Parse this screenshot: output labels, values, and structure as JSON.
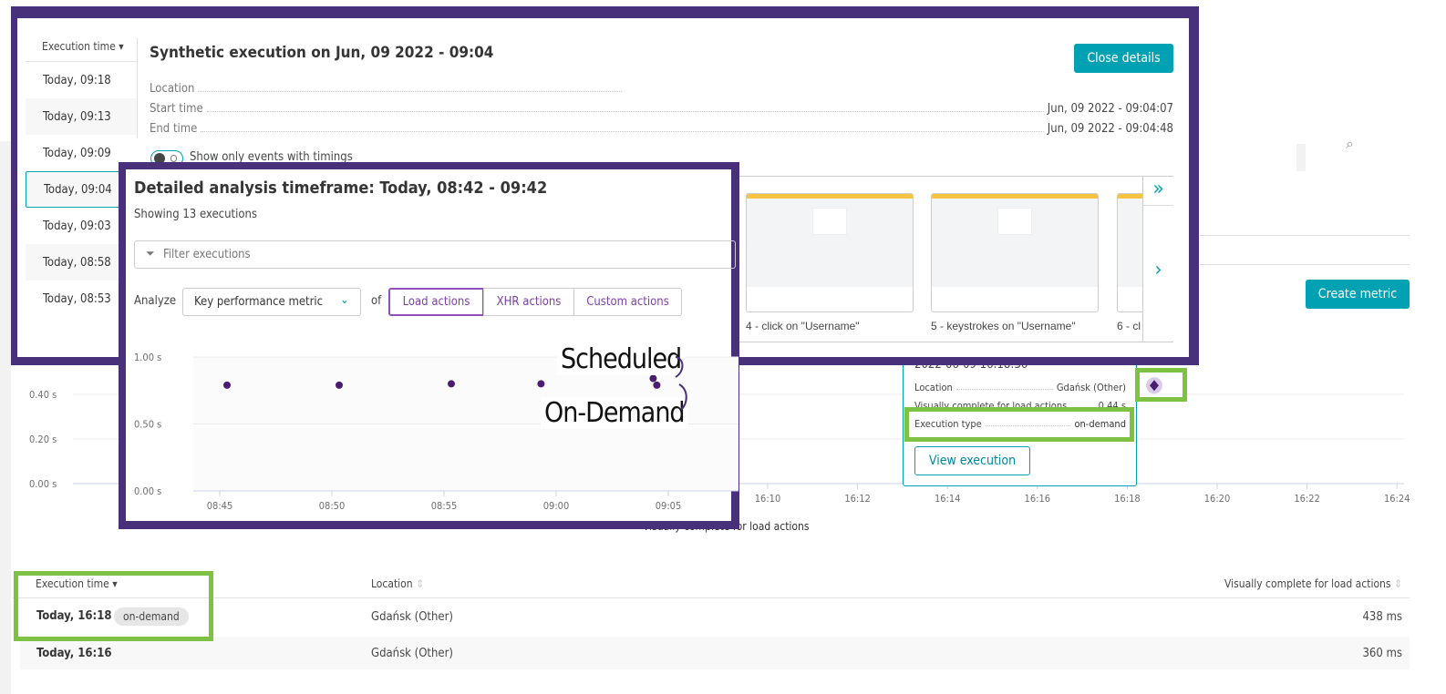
{
  "colors": {
    "accent": "#00a1b2",
    "highlight": "#48307a",
    "callout": "#7dc242",
    "point": "#4b1d6e"
  },
  "background": {
    "create_metric": "Create metric",
    "chart": {
      "type": "scatter",
      "yticks": [
        "0.40 s",
        "0.20 s",
        "0.00 s"
      ],
      "xticks": [
        "16:10",
        "16:12",
        "16:14",
        "16:16",
        "16:18",
        "16:20",
        "16:22",
        "16:24"
      ],
      "xlabel": "Visually complete for load actions",
      "points": [
        {
          "time": "16:18:36",
          "value_s": 0.44
        }
      ]
    },
    "tooltip": {
      "timestamp": "2022-06-09 16:18:36",
      "rows": [
        {
          "label": "Location",
          "value": "Gdańsk (Other)"
        },
        {
          "label": "Visually complete for load actions",
          "value": "0.44 s"
        },
        {
          "label": "Execution type",
          "value": "on-demand"
        }
      ],
      "button": "View execution"
    },
    "table": {
      "headers": [
        "Execution time",
        "Location",
        "Visually complete for load actions"
      ],
      "rows": [
        {
          "time": "Today, 16:18",
          "badge": "on-demand",
          "location": "Gdańsk (Other)",
          "value": "438 ms"
        },
        {
          "time": "Today, 16:16",
          "location": "Gdańsk (Other)",
          "value": "360 ms"
        }
      ]
    }
  },
  "details": {
    "list_header": "Execution time",
    "list": [
      "Today, 09:18",
      "Today, 09:13",
      "Today, 09:09",
      "Today, 09:04",
      "Today, 09:03",
      "Today, 08:58",
      "Today, 08:53"
    ],
    "selected_index": 3,
    "title": "Synthetic execution on Jun, 09 2022 - 09:04",
    "close": "Close details",
    "fields": [
      {
        "label": "Location",
        "value": ""
      },
      {
        "label": "Start time",
        "value": "Jun, 09 2022 - 09:04:07"
      },
      {
        "label": "End time",
        "value": "Jun, 09 2022 - 09:04:48"
      }
    ],
    "toggle_label": "Show only events with timings",
    "toggle_on": true,
    "screenshots": [
      "4 - click on \"Username\"",
      "5 - keystrokes on \"Username\"",
      "6 - cl"
    ]
  },
  "analysis": {
    "title": "Detailed analysis timeframe: Today, 08:42 - 09:42",
    "showing": "Showing 13 executions",
    "filter_placeholder": "Filter executions",
    "analyze_label": "Analyze",
    "metric": "Key performance metric",
    "of_label": "of",
    "tabs": [
      "Load actions",
      "XHR actions",
      "Custom actions"
    ],
    "active_tab": 0,
    "annotations": [
      "Scheduled",
      "On-Demand"
    ]
  },
  "chart_data": {
    "type": "scatter",
    "yticks": [
      "1.00 s",
      "0.50 s",
      "0.00 s"
    ],
    "ylim": [
      0,
      1
    ],
    "xticks": [
      "08:45",
      "08:50",
      "08:55",
      "09:00",
      "09:05"
    ],
    "points": [
      {
        "time": "08:45",
        "value_s": 0.79
      },
      {
        "time": "08:50",
        "value_s": 0.79
      },
      {
        "time": "08:55",
        "value_s": 0.8
      },
      {
        "time": "08:59",
        "value_s": 0.8
      },
      {
        "time": "09:04",
        "value_s": 0.84
      },
      {
        "time": "09:04",
        "value_s": 0.79
      }
    ]
  }
}
